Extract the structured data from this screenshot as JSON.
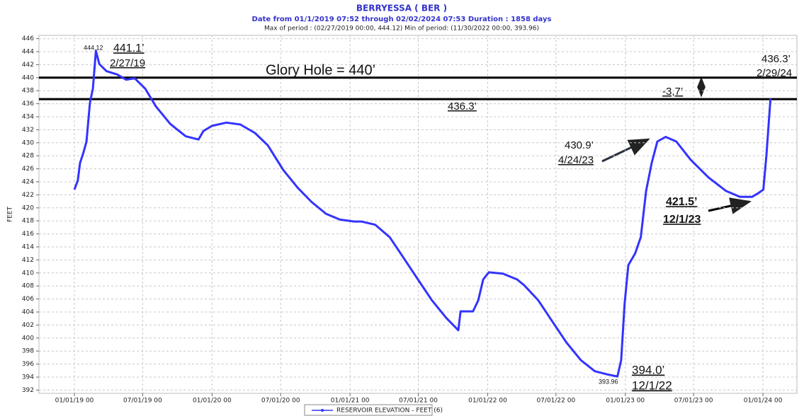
{
  "chart_data": {
    "type": "line",
    "title": "BERRYESSA ( BER )",
    "subtitle": "Date from 01/1/2019 07:52 through 02/02/2024 07:53 Duration : 1858 days",
    "period_note": "Max of period : (02/27/2019 00:00, 444.12)  Min of period: (11/30/2022 00:00, 393.96)",
    "y_label": "FEET",
    "x": [
      "2019-01-01",
      "2019-01-10",
      "2019-01-16",
      "2019-01-25",
      "2019-02-02",
      "2019-02-11",
      "2019-02-19",
      "2019-02-27",
      "2019-03-08",
      "2019-03-27",
      "2019-04-24",
      "2019-05-18",
      "2019-06-10",
      "2019-07-08",
      "2019-08-05",
      "2019-09-12",
      "2019-10-23",
      "2019-11-26",
      "2019-12-09",
      "2020-01-01",
      "2020-02-08",
      "2020-03-16",
      "2020-04-24",
      "2020-05-28",
      "2020-07-08",
      "2020-08-15",
      "2020-09-21",
      "2020-10-29",
      "2020-12-05",
      "2021-01-12",
      "2021-01-31",
      "2021-03-09",
      "2021-04-16",
      "2021-05-23",
      "2021-06-30",
      "2021-08-06",
      "2021-09-13",
      "2021-10-15",
      "2021-10-21",
      "2021-11-23",
      "2021-12-07",
      "2021-12-20",
      "2022-01-04",
      "2022-02-10",
      "2022-03-20",
      "2022-04-08",
      "2022-05-15",
      "2022-06-22",
      "2022-07-29",
      "2022-09-05",
      "2022-10-12",
      "2022-11-15",
      "2022-12-11",
      "2022-12-21",
      "2022-12-30",
      "2023-01-09",
      "2023-01-27",
      "2023-02-11",
      "2023-02-25",
      "2023-03-12",
      "2023-03-27",
      "2023-04-18",
      "2023-05-16",
      "2023-06-23",
      "2023-08-09",
      "2023-09-25",
      "2023-11-01",
      "2023-12-03",
      "2023-12-18",
      "2024-01-02",
      "2024-01-10",
      "2024-01-21"
    ],
    "series": [
      {
        "name": "RESERVOIR ELEVATION - FEET (6)",
        "color": "#3333ff",
        "values": [
          422.8,
          424.2,
          426.9,
          428.5,
          430.2,
          436.1,
          438.3,
          444.12,
          442.1,
          441.0,
          440.5,
          439.7,
          439.9,
          438.3,
          435.6,
          432.9,
          431.0,
          430.5,
          431.8,
          432.6,
          433.1,
          432.8,
          431.5,
          429.6,
          425.8,
          423.1,
          420.9,
          419.1,
          418.2,
          417.9,
          417.9,
          417.4,
          415.5,
          412.3,
          409.0,
          405.8,
          403.1,
          401.2,
          404.1,
          404.1,
          405.8,
          409.0,
          410.1,
          409.9,
          409.0,
          408.1,
          405.8,
          402.5,
          399.3,
          396.6,
          394.9,
          394.4,
          394.1,
          396.6,
          405.2,
          411.2,
          413.0,
          415.5,
          422.6,
          426.9,
          430.2,
          430.9,
          430.2,
          427.4,
          424.7,
          422.6,
          421.7,
          421.7,
          422.2,
          422.8,
          428.0,
          436.8
        ]
      }
    ],
    "xlim": [
      "2018-09-29",
      "2024-03-31"
    ],
    "xticks": [
      {
        "value": "2019-01-01",
        "label": "01/01/19 00"
      },
      {
        "value": "2019-07-01",
        "label": "07/01/19 00"
      },
      {
        "value": "2020-01-01",
        "label": "01/01/20 00"
      },
      {
        "value": "2020-07-01",
        "label": "07/01/20 00"
      },
      {
        "value": "2021-01-01",
        "label": "01/01/21 00"
      },
      {
        "value": "2021-07-01",
        "label": "07/01/21 00"
      },
      {
        "value": "2022-01-01",
        "label": "01/01/22 00"
      },
      {
        "value": "2022-07-01",
        "label": "07/01/22 00"
      },
      {
        "value": "2023-01-01",
        "label": "01/01/23 00"
      },
      {
        "value": "2023-07-01",
        "label": "07/01/23 00"
      },
      {
        "value": "2024-01-01",
        "label": "01/01/24 00"
      }
    ],
    "ylim": [
      391.5,
      446.5
    ],
    "yticks": [
      392,
      394,
      396,
      398,
      400,
      402,
      404,
      406,
      408,
      410,
      412,
      414,
      416,
      418,
      420,
      422,
      424,
      426,
      428,
      430,
      432,
      434,
      436,
      438,
      440,
      442,
      444,
      446
    ],
    "grid": true,
    "reference_lines": [
      {
        "value": 440,
        "color": "#000000"
      },
      {
        "value": 436.7,
        "color": "#000000"
      }
    ],
    "annotations": [
      {
        "text": "444.12"
      },
      {
        "text": "441.1’"
      },
      {
        "text": "2/27/19"
      },
      {
        "text": "Glory Hole = 440’"
      },
      {
        "text": "436.3’"
      },
      {
        "text": "436.3’"
      },
      {
        "text": "2/29/24"
      },
      {
        "text": "-3,7’"
      },
      {
        "text": "430.9’"
      },
      {
        "text": "4/24/23"
      },
      {
        "text": "421.5’"
      },
      {
        "text": "12/1/23"
      },
      {
        "text": "394.0’"
      },
      {
        "text": "12/1/22"
      },
      {
        "text": "393.96"
      }
    ]
  }
}
